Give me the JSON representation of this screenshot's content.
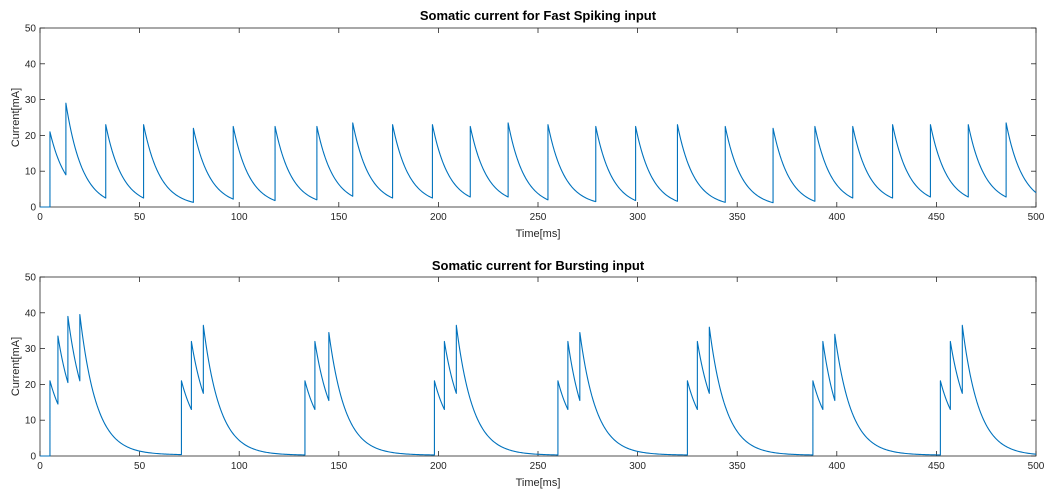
{
  "chart_data": [
    {
      "type": "line",
      "title": "Somatic current for Fast Spiking input",
      "xlabel": "Time[ms]",
      "ylabel": "Current[mA]",
      "xlim": [
        0,
        500
      ],
      "ylim": [
        0,
        50
      ],
      "xticks": [
        0,
        50,
        100,
        150,
        200,
        250,
        300,
        350,
        400,
        450,
        500
      ],
      "yticks": [
        0,
        10,
        20,
        30,
        40,
        50
      ],
      "grid": false,
      "series": [
        {
          "color": "#0072BD",
          "x": [
            0,
            5,
            5,
            13,
            13,
            33,
            33,
            52,
            52,
            77,
            77,
            97,
            97,
            118,
            118,
            139,
            139,
            157,
            157,
            177,
            177,
            197,
            197,
            216,
            216,
            235,
            235,
            255,
            255,
            279,
            279,
            299,
            299,
            320,
            320,
            344,
            344,
            368,
            368,
            389,
            389,
            408,
            408,
            428,
            428,
            447,
            447,
            466,
            466,
            485,
            485,
            500
          ],
          "y": [
            0,
            0,
            21,
            9,
            29,
            2.5,
            23,
            2.5,
            23,
            1.3,
            22,
            2.2,
            22.5,
            1.8,
            22.5,
            2.0,
            22.5,
            3.0,
            23.5,
            2.5,
            23,
            2.5,
            23,
            2.8,
            22.5,
            2.8,
            23.5,
            2.0,
            23,
            1.5,
            22.5,
            1.8,
            22.5,
            1.6,
            23,
            1.3,
            22.5,
            1.2,
            22,
            1.6,
            22.5,
            2.5,
            22.5,
            2.5,
            23,
            2.8,
            23,
            2.8,
            23,
            2.8,
            23.5,
            4.0
          ],
          "peak_times": [
            5,
            13,
            33,
            52,
            77,
            97,
            118,
            139,
            157,
            177,
            197,
            216,
            235,
            255,
            279,
            299,
            320,
            344,
            368,
            389,
            408,
            428,
            447,
            466,
            485
          ],
          "peak_values": [
            21,
            29,
            23,
            23,
            22,
            22.5,
            22.5,
            22.5,
            23.5,
            23,
            23,
            22.5,
            23.5,
            23,
            22.5,
            22.5,
            23,
            22.5,
            22,
            22.5,
            22.5,
            23,
            23,
            23,
            23.5
          ]
        }
      ]
    },
    {
      "type": "line",
      "title": "Somatic current for Bursting input",
      "xlabel": "Time[ms]",
      "ylabel": "Current[mA]",
      "xlim": [
        0,
        500
      ],
      "ylim": [
        0,
        50
      ],
      "xticks": [
        0,
        50,
        100,
        150,
        200,
        250,
        300,
        350,
        400,
        450,
        500
      ],
      "yticks": [
        0,
        10,
        20,
        30,
        40,
        50
      ],
      "grid": false,
      "series": [
        {
          "color": "#0072BD",
          "peak_times": [
            5,
            9,
            14,
            20,
            71,
            76,
            82,
            133,
            138,
            145,
            198,
            203,
            209,
            260,
            265,
            271,
            325,
            330,
            336,
            388,
            393,
            399,
            452,
            457,
            463
          ],
          "peak_values": [
            21,
            33.5,
            39,
            39.5,
            21,
            32,
            36.5,
            21,
            32,
            34.5,
            21,
            32,
            36.5,
            21,
            32,
            34.5,
            21,
            32,
            36,
            21,
            32,
            34,
            21,
            32,
            36.5
          ],
          "trough_values": [
            14.5,
            20.5,
            21,
            0.4,
            13,
            17.5,
            0.3,
            13,
            15.5,
            0.3,
            13,
            17.5,
            0.3,
            13,
            15.5,
            0.3,
            13,
            17.5,
            0.3,
            13,
            15.5,
            0.3,
            13,
            17.5,
            0.5
          ]
        }
      ]
    }
  ]
}
